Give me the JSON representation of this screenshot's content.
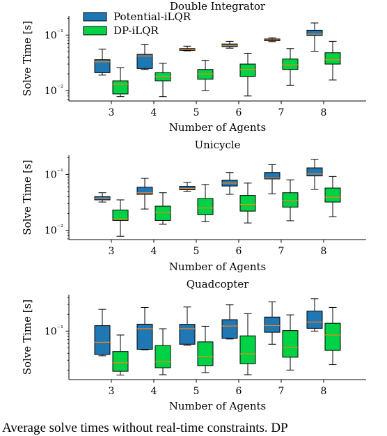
{
  "caption": ": Average solve times without real-time constraints. DP",
  "colors": {
    "potential": "#1f77b4",
    "dp": "#00d245",
    "median": "#ff7f0e"
  },
  "chart_data": [
    {
      "type": "box",
      "title": "Double Integrator",
      "xlabel": "Number of Agents",
      "ylabel": "Solve Time [s]",
      "yscale": "log",
      "ylim": [
        0.0065,
        0.22
      ],
      "yticks": [
        {
          "value": 0.01,
          "label": "10⁻²"
        },
        {
          "value": 0.1,
          "label": "10⁻¹"
        }
      ],
      "legend": {
        "placement": "top-left",
        "entries": [
          "Potential-iLQR",
          "DP-iLQR"
        ]
      },
      "categories": [
        "3",
        "4",
        "5",
        "6",
        "7",
        "8"
      ],
      "series": [
        {
          "name": "Potential-iLQR",
          "color": "#1f77b4",
          "boxes": [
            {
              "whislo": 0.019,
              "q1": 0.021,
              "med": 0.033,
              "q3": 0.036,
              "whishi": 0.056
            },
            {
              "whislo": 0.024,
              "q1": 0.025,
              "med": 0.042,
              "q3": 0.045,
              "whishi": 0.068
            },
            {
              "whislo": 0.052,
              "q1": 0.053,
              "med": 0.055,
              "q3": 0.057,
              "whishi": 0.063
            },
            {
              "whislo": 0.058,
              "q1": 0.062,
              "med": 0.065,
              "q3": 0.069,
              "whishi": 0.077
            },
            {
              "whislo": 0.076,
              "q1": 0.079,
              "med": 0.082,
              "q3": 0.085,
              "whishi": 0.089
            },
            {
              "whislo": 0.051,
              "q1": 0.098,
              "med": 0.104,
              "q3": 0.122,
              "whishi": 0.165
            }
          ]
        },
        {
          "name": "DP-iLQR",
          "color": "#00d245",
          "boxes": [
            {
              "whislo": 0.0078,
              "q1": 0.0087,
              "med": 0.013,
              "q3": 0.015,
              "whishi": 0.026
            },
            {
              "whislo": 0.0078,
              "q1": 0.015,
              "med": 0.018,
              "q3": 0.021,
              "whishi": 0.031
            },
            {
              "whislo": 0.01,
              "q1": 0.016,
              "med": 0.02,
              "q3": 0.024,
              "whishi": 0.035
            },
            {
              "whislo": 0.008,
              "q1": 0.018,
              "med": 0.024,
              "q3": 0.03,
              "whishi": 0.047
            },
            {
              "whislo": 0.0125,
              "q1": 0.024,
              "med": 0.029,
              "q3": 0.037,
              "whishi": 0.057
            },
            {
              "whislo": 0.0155,
              "q1": 0.03,
              "med": 0.036,
              "q3": 0.048,
              "whishi": 0.077
            }
          ]
        }
      ]
    },
    {
      "type": "box",
      "title": "Unicycle",
      "xlabel": "Number of Agents",
      "ylabel": "Solve Time [s]",
      "yscale": "log",
      "ylim": [
        0.0068,
        0.22
      ],
      "yticks": [
        {
          "value": 0.01,
          "label": "10⁻²"
        },
        {
          "value": 0.1,
          "label": "10⁻¹"
        }
      ],
      "categories": [
        "3",
        "4",
        "5",
        "6",
        "7",
        "8"
      ],
      "series": [
        {
          "name": "Potential-iLQR",
          "color": "#1f77b4",
          "boxes": [
            {
              "whislo": 0.032,
              "q1": 0.035,
              "med": 0.037,
              "q3": 0.04,
              "whishi": 0.047
            },
            {
              "whislo": 0.024,
              "q1": 0.044,
              "med": 0.047,
              "q3": 0.059,
              "whishi": 0.085
            },
            {
              "whislo": 0.05,
              "q1": 0.053,
              "med": 0.056,
              "q3": 0.061,
              "whishi": 0.072
            },
            {
              "whislo": 0.044,
              "q1": 0.062,
              "med": 0.07,
              "q3": 0.079,
              "whishi": 0.108
            },
            {
              "whislo": 0.045,
              "q1": 0.083,
              "med": 0.086,
              "q3": 0.108,
              "whishi": 0.15
            },
            {
              "whislo": 0.054,
              "q1": 0.094,
              "med": 0.102,
              "q3": 0.131,
              "whishi": 0.187
            }
          ]
        },
        {
          "name": "DP-iLQR",
          "color": "#00d245",
          "boxes": [
            {
              "whislo": 0.0078,
              "q1": 0.015,
              "med": 0.016,
              "q3": 0.023,
              "whishi": 0.035
            },
            {
              "whislo": 0.0128,
              "q1": 0.015,
              "med": 0.021,
              "q3": 0.027,
              "whishi": 0.047
            },
            {
              "whislo": 0.0142,
              "q1": 0.019,
              "med": 0.025,
              "q3": 0.037,
              "whishi": 0.066
            },
            {
              "whislo": 0.0135,
              "q1": 0.022,
              "med": 0.029,
              "q3": 0.042,
              "whishi": 0.07
            },
            {
              "whislo": 0.0148,
              "q1": 0.026,
              "med": 0.034,
              "q3": 0.047,
              "whishi": 0.08
            },
            {
              "whislo": 0.0175,
              "q1": 0.032,
              "med": 0.039,
              "q3": 0.057,
              "whishi": 0.092
            }
          ]
        }
      ]
    },
    {
      "type": "box",
      "title": "Quadcopter",
      "xlabel": "Number of Agents",
      "ylabel": "Solve Time [s]",
      "yscale": "log",
      "ylim": [
        0.0135,
        0.45
      ],
      "yticks": [
        {
          "value": 0.1,
          "label": "10⁻¹"
        }
      ],
      "categories": [
        "3",
        "4",
        "5",
        "6",
        "7",
        "8"
      ],
      "series": [
        {
          "name": "Potential-iLQR",
          "color": "#1f77b4",
          "boxes": [
            {
              "whislo": 0.036,
              "q1": 0.038,
              "med": 0.063,
              "q3": 0.125,
              "whishi": 0.245
            },
            {
              "whislo": 0.046,
              "q1": 0.047,
              "med": 0.11,
              "q3": 0.133,
              "whishi": 0.265
            },
            {
              "whislo": 0.056,
              "q1": 0.058,
              "med": 0.11,
              "q3": 0.132,
              "whishi": 0.27
            },
            {
              "whislo": 0.072,
              "q1": 0.074,
              "med": 0.123,
              "q3": 0.16,
              "whishi": 0.295
            },
            {
              "whislo": 0.058,
              "q1": 0.095,
              "med": 0.125,
              "q3": 0.178,
              "whishi": 0.335
            },
            {
              "whislo": 0.1,
              "q1": 0.112,
              "med": 0.145,
              "q3": 0.228,
              "whishi": 0.38
            }
          ]
        },
        {
          "name": "DP-iLQR",
          "color": "#00d245",
          "boxes": [
            {
              "whislo": 0.0163,
              "q1": 0.019,
              "med": 0.027,
              "q3": 0.043,
              "whishi": 0.085
            },
            {
              "whislo": 0.0165,
              "q1": 0.022,
              "med": 0.028,
              "q3": 0.055,
              "whishi": 0.11
            },
            {
              "whislo": 0.018,
              "q1": 0.024,
              "med": 0.035,
              "q3": 0.064,
              "whishi": 0.122
            },
            {
              "whislo": 0.0165,
              "q1": 0.026,
              "med": 0.039,
              "q3": 0.082,
              "whishi": 0.205
            },
            {
              "whislo": 0.02,
              "q1": 0.034,
              "med": 0.051,
              "q3": 0.102,
              "whishi": 0.195
            },
            {
              "whislo": 0.025,
              "q1": 0.045,
              "med": 0.085,
              "q3": 0.138,
              "whishi": 0.265
            }
          ]
        }
      ]
    }
  ]
}
